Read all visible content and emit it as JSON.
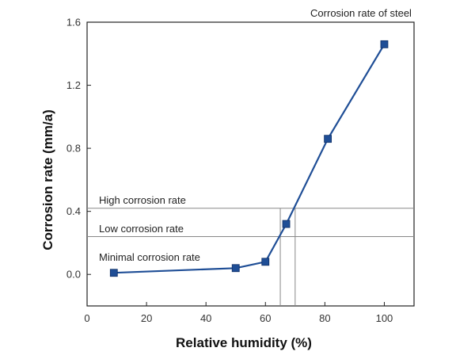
{
  "chart_data": {
    "type": "line",
    "title": "Corrosion rate of steel",
    "xlabel": "Relative humidity (%)",
    "ylabel": "Corrosion rate (mm/a)",
    "xlim": [
      0,
      110
    ],
    "ylim": [
      -0.2,
      1.6
    ],
    "xticks": [
      0,
      20,
      40,
      60,
      80,
      100
    ],
    "yticks": [
      0.0,
      0.4,
      0.8,
      1.2,
      1.6
    ],
    "xtick_labels": [
      "0",
      "20",
      "40",
      "60",
      "80",
      "100"
    ],
    "ytick_labels": [
      "0.0",
      "0.4",
      "0.8",
      "1.2",
      "1.6"
    ],
    "grid": false,
    "series": [
      {
        "color": "#1f4e96",
        "marker": "square",
        "x": [
          9,
          50,
          60,
          67,
          81,
          100
        ],
        "y": [
          0.01,
          0.04,
          0.08,
          0.32,
          0.86,
          1.46
        ]
      }
    ],
    "reference_lines": {
      "horizontal_y": [
        0.42,
        0.24
      ],
      "vertical_x": [
        65,
        70
      ],
      "color": "#888888"
    },
    "annotations": [
      {
        "text": "High corrosion rate",
        "x": 4,
        "y": 0.47
      },
      {
        "text": "Low corrosion rate",
        "x": 4,
        "y": 0.29
      },
      {
        "text": "Minimal corrosion rate",
        "x": 4,
        "y": 0.11
      }
    ]
  }
}
